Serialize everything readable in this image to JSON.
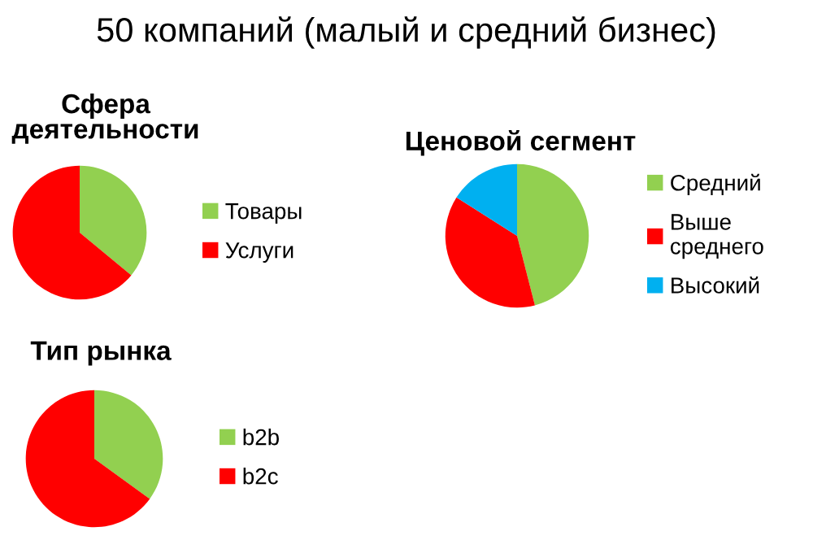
{
  "chart_data": [
    {
      "type": "pie",
      "title": "Сфера деятельности",
      "annotations": [
        "50 компаний (малый и средний бизнес)"
      ],
      "categories": [
        "Товары",
        "Услуги"
      ],
      "values": [
        36,
        64
      ],
      "colors": [
        "#92d050",
        "#ff0000"
      ],
      "legend": "right"
    },
    {
      "type": "pie",
      "title": "Ценовой сегмент",
      "categories": [
        "Средний",
        "Выше среднего",
        "Высокий"
      ],
      "values": [
        46,
        38,
        16
      ],
      "colors": [
        "#92d050",
        "#ff0000",
        "#00b0f0"
      ],
      "legend": "right"
    },
    {
      "type": "pie",
      "title": "Тип рынка",
      "categories": [
        "b2b",
        "b2c"
      ],
      "values": [
        35,
        65
      ],
      "colors": [
        "#92d050",
        "#ff0000"
      ],
      "legend": "right"
    }
  ]
}
